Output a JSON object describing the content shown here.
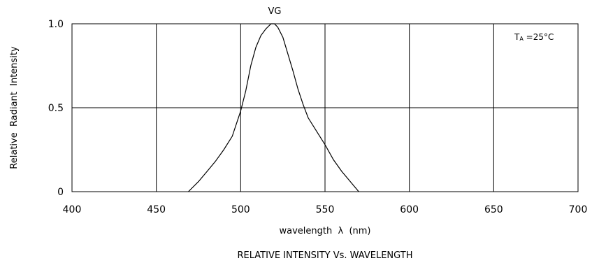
{
  "chart_data": {
    "type": "line",
    "title": "RELATIVE INTENSITY Vs. WAVELENGTH",
    "curve_label": "VG",
    "annotation": "TA =25°C",
    "annotation_parts": {
      "t": "T",
      "sub": "A",
      "rest": " =25°C"
    },
    "xlabel": "wavelength  λ  (nm)",
    "ylabel": "Relative  Radiant  Intensity",
    "xlim": [
      400,
      700
    ],
    "ylim": [
      0,
      1.0
    ],
    "x_ticks": [
      400,
      450,
      500,
      550,
      600,
      650,
      700
    ],
    "x_tick_labels": [
      "400",
      "450",
      "500",
      "550",
      "600",
      "650",
      "700"
    ],
    "y_ticks": [
      0,
      0.5,
      1.0
    ],
    "y_tick_labels": [
      "0",
      "0.5",
      "1.0"
    ],
    "grid": true,
    "series": [
      {
        "x": [
          469,
          475,
          480,
          485,
          490,
          495,
          500,
          503,
          506,
          509,
          512,
          515,
          518,
          520,
          522,
          525,
          528,
          531,
          534,
          537,
          540,
          545,
          550,
          555,
          560,
          565,
          570
        ],
        "y": [
          0.0,
          0.06,
          0.12,
          0.18,
          0.25,
          0.33,
          0.48,
          0.6,
          0.75,
          0.86,
          0.93,
          0.97,
          1.0,
          1.0,
          0.98,
          0.92,
          0.82,
          0.72,
          0.61,
          0.52,
          0.44,
          0.36,
          0.28,
          0.19,
          0.12,
          0.06,
          0.0
        ]
      }
    ]
  }
}
